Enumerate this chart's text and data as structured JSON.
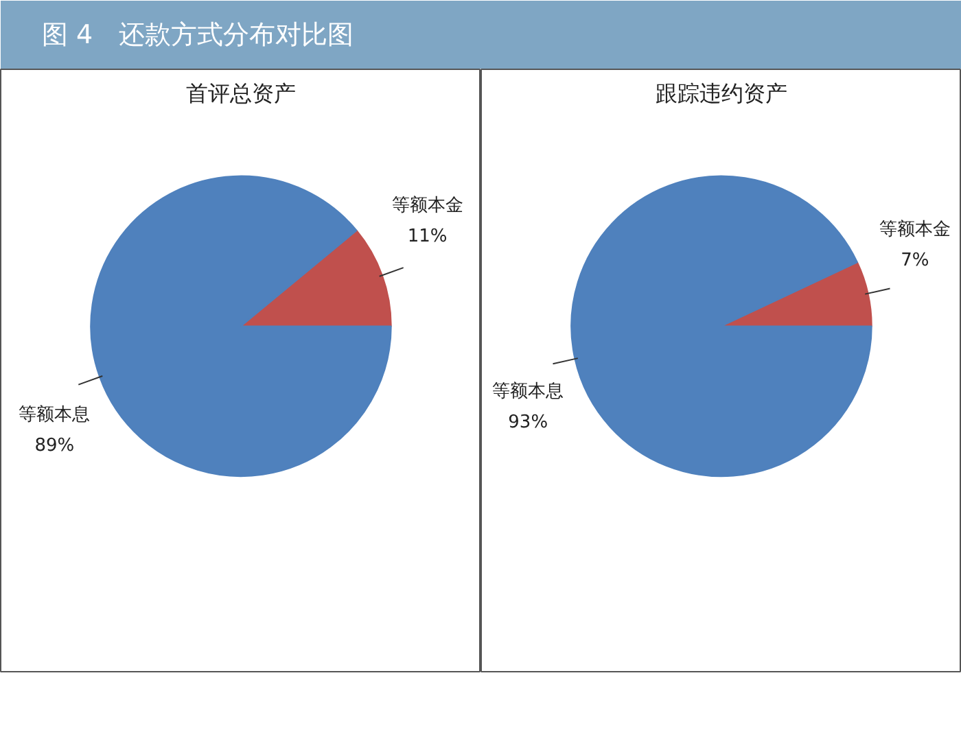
{
  "chart_data": [
    {
      "type": "other",
      "title": "图 4　还款方式分布对比图"
    },
    {
      "type": "pie",
      "title": "首评总资产",
      "categories": [
        "等额本金",
        "等额本息"
      ],
      "values": [
        11,
        89
      ],
      "value_labels": [
        "11%",
        "89%"
      ],
      "colors": [
        "#c0504d",
        "#4f81bd"
      ]
    },
    {
      "type": "pie",
      "title": "跟踪违约资产",
      "categories": [
        "等额本金",
        "等额本息"
      ],
      "values": [
        7,
        93
      ],
      "value_labels": [
        "7%",
        "93%"
      ],
      "colors": [
        "#c0504d",
        "#4f81bd"
      ]
    }
  ]
}
